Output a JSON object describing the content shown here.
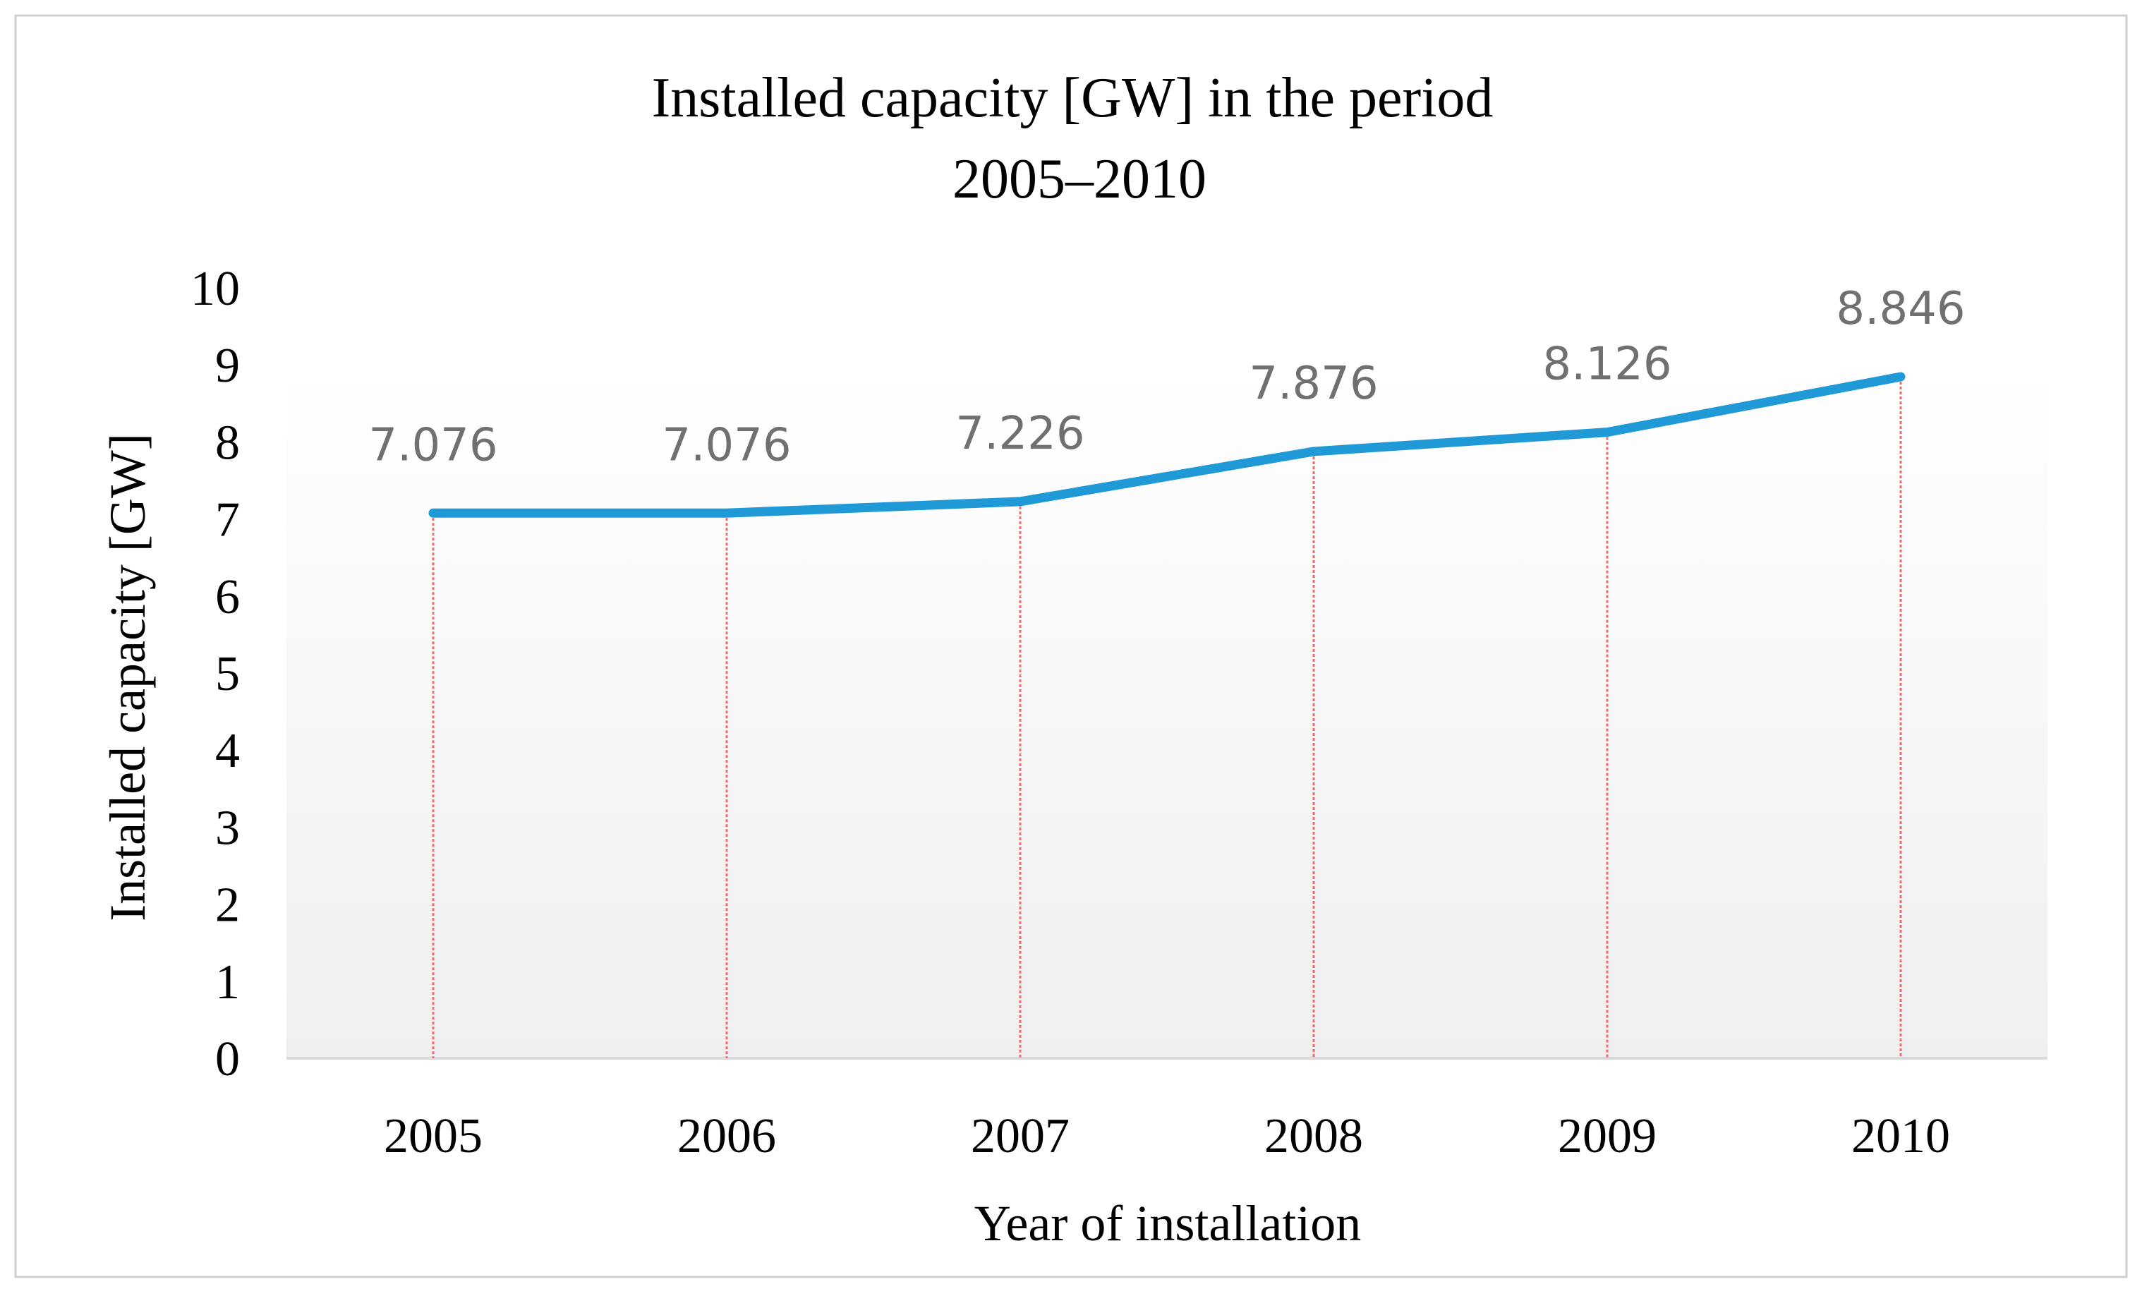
{
  "chart_data": {
    "type": "line",
    "title": "Installed capacity [GW] in the period",
    "subtitle": "2005–2010",
    "xlabel": "Year of installation",
    "ylabel": "Installed capacity [GW]",
    "categories": [
      "2005",
      "2006",
      "2007",
      "2008",
      "2009",
      "2010"
    ],
    "values": [
      7.076,
      7.076,
      7.226,
      7.876,
      8.126,
      8.846
    ],
    "data_labels": [
      "7.076",
      "7.076",
      "7.226",
      "7.876",
      "8.126",
      "8.846"
    ],
    "ylim": [
      0,
      10
    ],
    "yticks": [
      "0",
      "1",
      "2",
      "3",
      "4",
      "5",
      "6",
      "7",
      "8",
      "9",
      "10"
    ],
    "drop_lines": true,
    "grid": false,
    "legend": "none",
    "colors": {
      "line": "#1f9ad6",
      "drop_line": "#f26b6b",
      "data_label": "#707070",
      "axis_text": "#000000",
      "plot_fill_top": "#ffffff",
      "plot_fill_bottom": "#efefef",
      "frame": "#d0d0d0",
      "axis_line": "#d9d9d9"
    }
  }
}
